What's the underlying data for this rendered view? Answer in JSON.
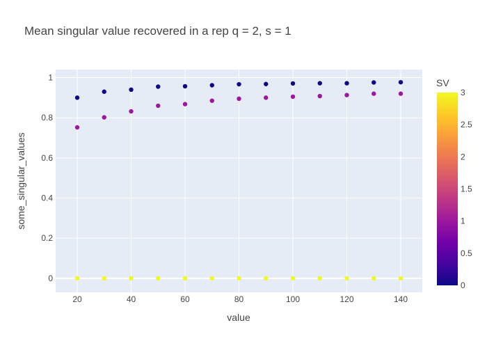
{
  "chart_data": {
    "type": "scatter",
    "title": "Mean singular value recovered in a rep q = 2, s = 1",
    "xlabel": "value",
    "ylabel": "some_singular_values",
    "xlim": [
      12,
      148
    ],
    "ylim": [
      -0.07,
      1.04
    ],
    "x_ticks": [
      20,
      40,
      60,
      80,
      100,
      120,
      140
    ],
    "y_ticks": [
      0,
      0.2,
      0.4,
      0.6,
      0.8,
      1
    ],
    "grid": true,
    "colorbar": {
      "title": "SV",
      "range": [
        0,
        3
      ],
      "ticks": [
        0,
        0.5,
        1,
        1.5,
        2,
        2.5,
        3
      ],
      "colorscale": [
        "#0d0887",
        "#46039f",
        "#7201a8",
        "#9c179e",
        "#bd3786",
        "#d8576b",
        "#ed7953",
        "#fb9f3a",
        "#fdca26",
        "#f0f921"
      ]
    },
    "series": [
      {
        "sv": 0,
        "x": [
          20,
          30,
          40,
          50,
          60,
          70,
          80,
          90,
          100,
          110,
          120,
          130,
          140
        ],
        "y": [
          0.9,
          0.93,
          0.94,
          0.955,
          0.957,
          0.962,
          0.967,
          0.968,
          0.971,
          0.972,
          0.972,
          0.976,
          0.977
        ]
      },
      {
        "sv": 1,
        "x": [
          20,
          30,
          40,
          50,
          60,
          70,
          80,
          90,
          100,
          110,
          120,
          130,
          140
        ],
        "y": [
          0.752,
          0.802,
          0.832,
          0.86,
          0.868,
          0.885,
          0.895,
          0.9,
          0.905,
          0.908,
          0.913,
          0.92,
          0.92
        ]
      },
      {
        "sv": 3,
        "x": [
          20,
          30,
          40,
          50,
          60,
          70,
          80,
          90,
          100,
          110,
          120,
          130,
          140
        ],
        "y": [
          0,
          0,
          0,
          0,
          0,
          0,
          0,
          0,
          0,
          0,
          0,
          0,
          0
        ]
      }
    ]
  }
}
